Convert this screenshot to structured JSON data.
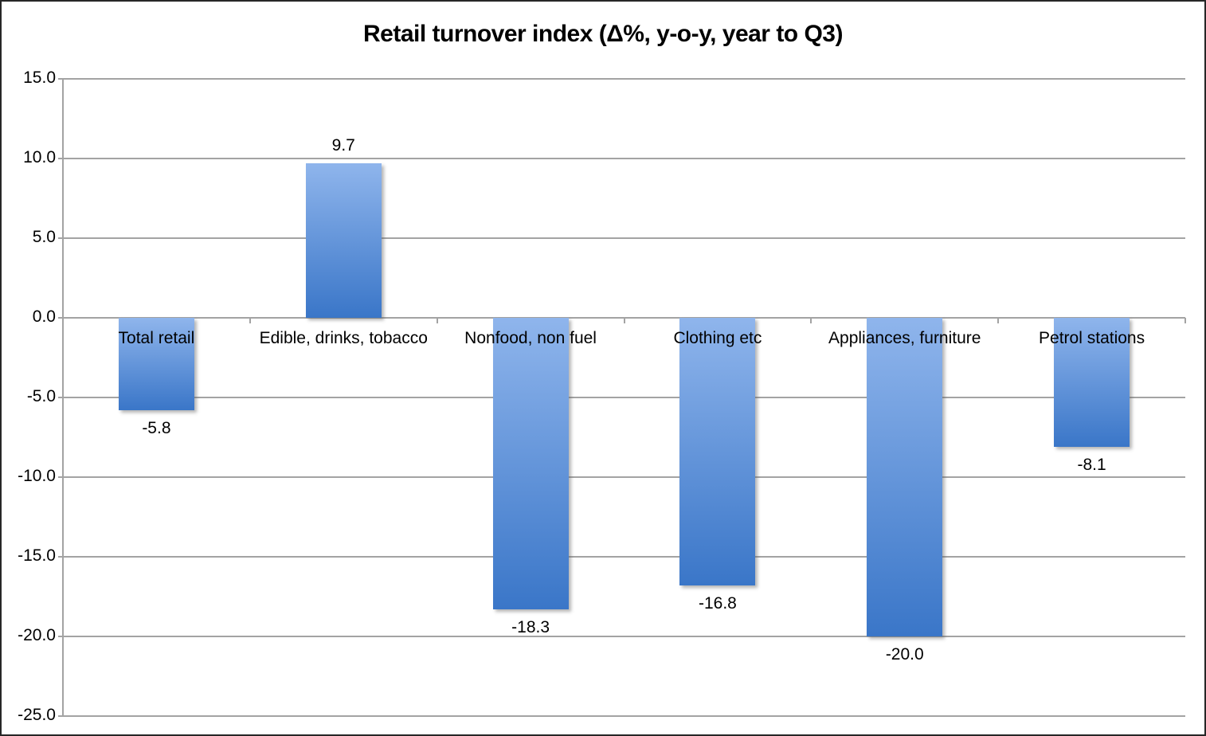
{
  "chart_data": {
    "type": "bar",
    "title": "Retail turnover index (Δ%, y-o-y, year to Q3)",
    "categories": [
      "Total retail",
      "Edible, drinks, tobacco",
      "Nonfood, non fuel",
      "Clothing etc",
      "Appliances, furniture",
      "Petrol stations"
    ],
    "values": [
      -5.8,
      9.7,
      -18.3,
      -16.8,
      -20.0,
      -8.1
    ],
    "data_labels": [
      "-5.8",
      "9.7",
      "-18.3",
      "-16.8",
      "-20.0",
      "-8.1"
    ],
    "xlabel": "",
    "ylabel": "",
    "ylim": [
      -25,
      15
    ],
    "ytick_step": 5,
    "ytick_labels": [
      "15.0",
      "10.0",
      "5.0",
      "0.0",
      "-5.0",
      "-10.0",
      "-15.0",
      "-20.0",
      "-25.0"
    ],
    "grid": true,
    "legend_position": "none",
    "colors": {
      "bar_gradient_top": "#8FB5EC",
      "bar_gradient_bottom": "#3A76C8",
      "gridline": "#A3A3A3",
      "text": "#000000",
      "background": "#FFFFFF",
      "frame_border": "#262626"
    }
  }
}
